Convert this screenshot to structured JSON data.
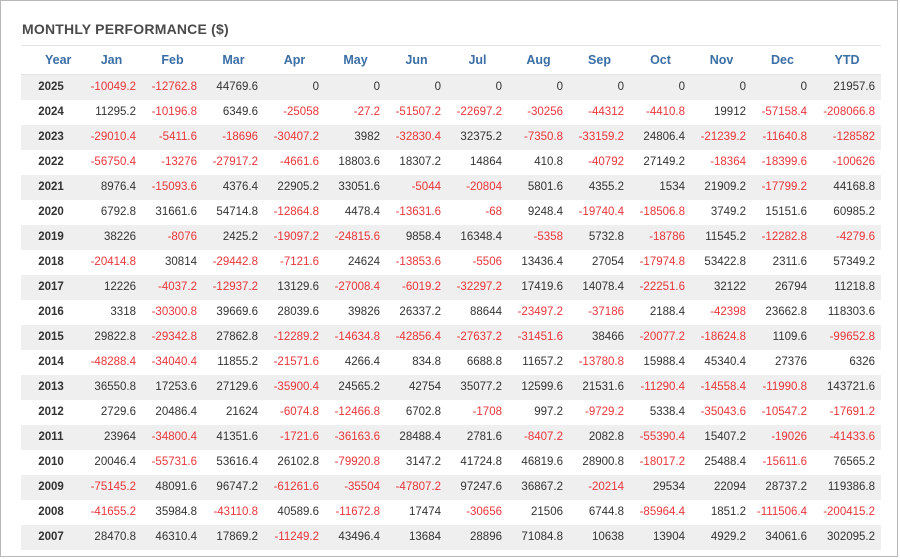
{
  "title": "MONTHLY PERFORMANCE ($)",
  "colors": {
    "negative": "#e8363a",
    "header": "#3a6ea5",
    "text": "#333333"
  },
  "columns": [
    "Year",
    "Jan",
    "Feb",
    "Mar",
    "Apr",
    "May",
    "Jun",
    "Jul",
    "Aug",
    "Sep",
    "Oct",
    "Nov",
    "Dec",
    "YTD"
  ],
  "rows": [
    [
      "2025",
      "-10049.2",
      "-12762.8",
      "44769.6",
      "0",
      "0",
      "0",
      "0",
      "0",
      "0",
      "0",
      "0",
      "0",
      "21957.6"
    ],
    [
      "2024",
      "11295.2",
      "-10196.8",
      "6349.6",
      "-25058",
      "-27.2",
      "-51507.2",
      "-22697.2",
      "-30256",
      "-44312",
      "-4410.8",
      "19912",
      "-57158.4",
      "-208066.8"
    ],
    [
      "2023",
      "-29010.4",
      "-5411.6",
      "-18696",
      "-30407.2",
      "3982",
      "-32830.4",
      "32375.2",
      "-7350.8",
      "-33159.2",
      "24806.4",
      "-21239.2",
      "-11640.8",
      "-128582"
    ],
    [
      "2022",
      "-56750.4",
      "-13276",
      "-27917.2",
      "-4661.6",
      "18803.6",
      "18307.2",
      "14864",
      "410.8",
      "-40792",
      "27149.2",
      "-18364",
      "-18399.6",
      "-100626"
    ],
    [
      "2021",
      "8976.4",
      "-15093.6",
      "4376.4",
      "22905.2",
      "33051.6",
      "-5044",
      "-20804",
      "5801.6",
      "4355.2",
      "1534",
      "21909.2",
      "-17799.2",
      "44168.8"
    ],
    [
      "2020",
      "6792.8",
      "31661.6",
      "54714.8",
      "-12864.8",
      "4478.4",
      "-13631.6",
      "-68",
      "9248.4",
      "-19740.4",
      "-18506.8",
      "3749.2",
      "15151.6",
      "60985.2"
    ],
    [
      "2019",
      "38226",
      "-8076",
      "2425.2",
      "-19097.2",
      "-24815.6",
      "9858.4",
      "16348.4",
      "-5358",
      "5732.8",
      "-18786",
      "11545.2",
      "-12282.8",
      "-4279.6"
    ],
    [
      "2018",
      "-20414.8",
      "30814",
      "-29442.8",
      "-7121.6",
      "24624",
      "-13853.6",
      "-5506",
      "13436.4",
      "27054",
      "-17974.8",
      "53422.8",
      "2311.6",
      "57349.2"
    ],
    [
      "2017",
      "12226",
      "-4037.2",
      "-12937.2",
      "13129.6",
      "-27008.4",
      "-6019.2",
      "-32297.2",
      "17419.6",
      "14078.4",
      "-22251.6",
      "32122",
      "26794",
      "11218.8"
    ],
    [
      "2016",
      "3318",
      "-30300.8",
      "39669.6",
      "28039.6",
      "39826",
      "26337.2",
      "88644",
      "-23497.2",
      "-37186",
      "2188.4",
      "-42398",
      "23662.8",
      "118303.6"
    ],
    [
      "2015",
      "29822.8",
      "-29342.8",
      "27862.8",
      "-12289.2",
      "-14634.8",
      "-42856.4",
      "-27637.2",
      "-31451.6",
      "38466",
      "-20077.2",
      "-18624.8",
      "1109.6",
      "-99652.8"
    ],
    [
      "2014",
      "-48288.4",
      "-34040.4",
      "11855.2",
      "-21571.6",
      "4266.4",
      "834.8",
      "6688.8",
      "11657.2",
      "-13780.8",
      "15988.4",
      "45340.4",
      "27376",
      "6326"
    ],
    [
      "2013",
      "36550.8",
      "17253.6",
      "27129.6",
      "-35900.4",
      "24565.2",
      "42754",
      "35077.2",
      "12599.6",
      "21531.6",
      "-11290.4",
      "-14558.4",
      "-11990.8",
      "143721.6"
    ],
    [
      "2012",
      "2729.6",
      "20486.4",
      "21624",
      "-6074.8",
      "-12466.8",
      "6702.8",
      "-1708",
      "997.2",
      "-9729.2",
      "5338.4",
      "-35043.6",
      "-10547.2",
      "-17691.2"
    ],
    [
      "2011",
      "23964",
      "-34800.4",
      "41351.6",
      "-1721.6",
      "-36163.6",
      "28488.4",
      "2781.6",
      "-8407.2",
      "2082.8",
      "-55390.4",
      "15407.2",
      "-19026",
      "-41433.6"
    ],
    [
      "2010",
      "20046.4",
      "-55731.6",
      "53616.4",
      "26102.8",
      "-79920.8",
      "3147.2",
      "41724.8",
      "46819.6",
      "28900.8",
      "-18017.2",
      "25488.4",
      "-15611.6",
      "76565.2"
    ],
    [
      "2009",
      "-75145.2",
      "48091.6",
      "96747.2",
      "-61261.6",
      "-35504",
      "-47807.2",
      "97247.6",
      "36867.2",
      "-20214",
      "29534",
      "22094",
      "28737.2",
      "119386.8"
    ],
    [
      "2008",
      "-41655.2",
      "35984.8",
      "-43110.8",
      "40589.6",
      "-11672.8",
      "17474",
      "-30656",
      "21506",
      "6744.8",
      "-85964.4",
      "1851.2",
      "-111506.4",
      "-200415.2"
    ],
    [
      "2007",
      "28470.8",
      "46310.4",
      "17869.2",
      "-11249.2",
      "43496.4",
      "13684",
      "28896",
      "71084.8",
      "10638",
      "13904",
      "4929.2",
      "34061.6",
      "302095.2"
    ]
  ]
}
